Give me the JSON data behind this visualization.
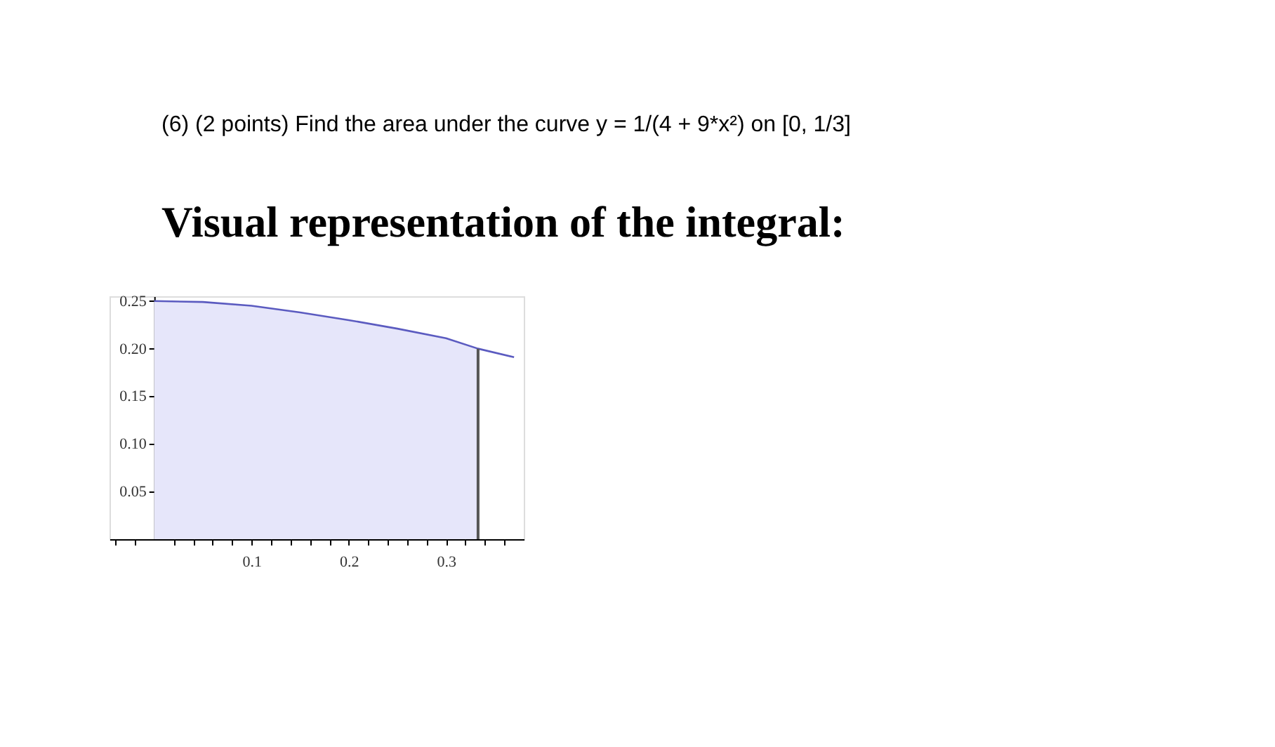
{
  "chart_data": {
    "type": "area",
    "title": "(6)  (2 points) Find the area under the curve y = 1/(4 + 9*x²) on [0, 1/3]",
    "subtitle": "Visual representation of the integral:",
    "series": [
      {
        "color": "#e6e6fa",
        "x": [
          0,
          0.05,
          0.1,
          0.15,
          0.2,
          0.25,
          0.3,
          0.333
        ],
        "values": [
          0.25,
          0.249,
          0.245,
          0.238,
          0.23,
          0.221,
          0.211,
          0.2
        ]
      },
      {
        "type": "line",
        "color": "#5b5bc0",
        "x": [
          0,
          0.05,
          0.1,
          0.15,
          0.2,
          0.25,
          0.3,
          0.333,
          0.37
        ],
        "values": [
          0.25,
          0.249,
          0.245,
          0.238,
          0.23,
          0.221,
          0.211,
          0.2,
          0.191
        ]
      }
    ],
    "ref_lines": [
      {
        "axis": "x",
        "value": 0.333,
        "color": "#555555"
      }
    ],
    "xlim": [
      -0.046,
      0.38
    ],
    "ylim": [
      0,
      0.255
    ],
    "xticks": [
      {
        "value": -0.04,
        "label": null
      },
      {
        "value": -0.02,
        "label": null
      },
      {
        "value": 0.02,
        "label": null
      },
      {
        "value": 0.04,
        "label": null
      },
      {
        "value": 0.06,
        "label": null
      },
      {
        "value": 0.08,
        "label": null
      },
      0.1,
      {
        "value": 0.12,
        "label": null
      },
      {
        "value": 0.14,
        "label": null
      },
      {
        "value": 0.16,
        "label": null
      },
      {
        "value": 0.18,
        "label": null
      },
      0.2,
      {
        "value": 0.22,
        "label": null
      },
      {
        "value": 0.24,
        "label": null
      },
      {
        "value": 0.26,
        "label": null
      },
      {
        "value": 0.28,
        "label": null
      },
      0.3,
      {
        "value": 0.32,
        "label": null
      },
      {
        "value": 0.34,
        "label": null
      },
      {
        "value": 0.36,
        "label": null
      }
    ],
    "yticks": [
      {
        "value": 0.05,
        "label": "0.05"
      },
      {
        "value": 0.1,
        "label": "0.10"
      },
      {
        "value": 0.15,
        "label": "0.15"
      },
      {
        "value": 0.2,
        "label": "0.20"
      },
      {
        "value": 0.25,
        "label": "0.25"
      }
    ],
    "grid": false
  }
}
